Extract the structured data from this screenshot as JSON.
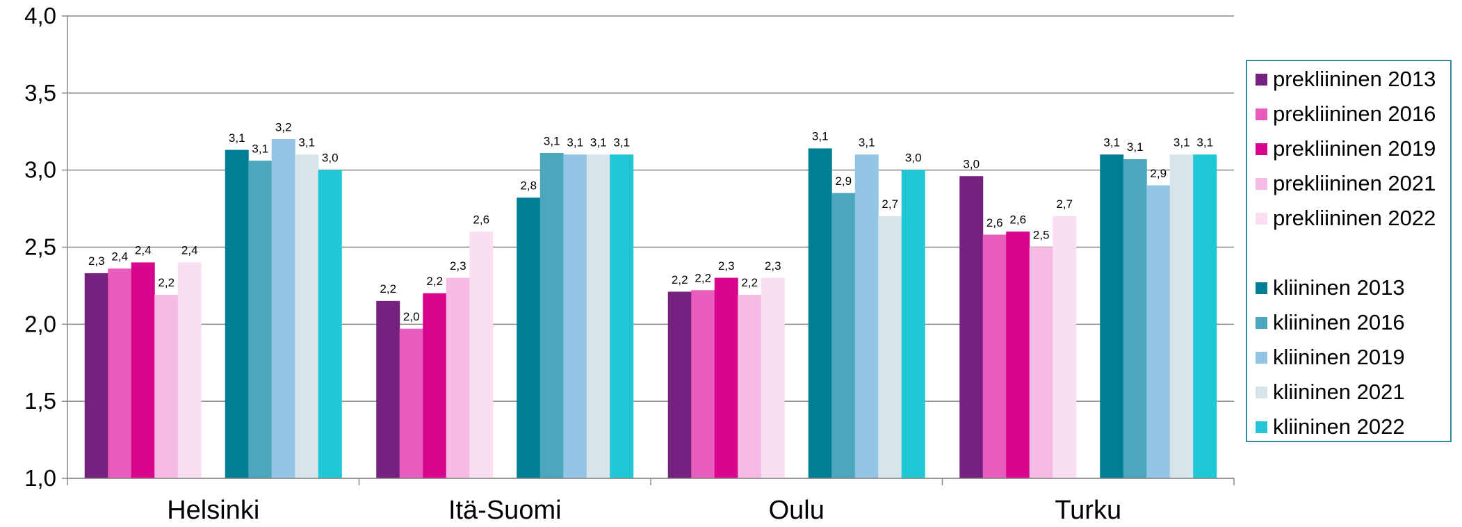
{
  "chart_data": {
    "type": "bar",
    "categories": [
      "Helsinki",
      "Itä-Suomi",
      "Oulu",
      "Turku"
    ],
    "ylim": [
      1.0,
      4.0
    ],
    "yticks": [
      "1,0",
      "1,5",
      "2,0",
      "2,5",
      "3,0",
      "3,5",
      "4,0"
    ],
    "ytick_values": [
      1.0,
      1.5,
      2.0,
      2.5,
      3.0,
      3.5,
      4.0
    ],
    "grid": true,
    "legend_position": "right",
    "groups": [
      {
        "series": [
          {
            "name": "prekliininen 2013",
            "color": "#74217F",
            "values": [
              2.33,
              2.15,
              2.21,
              2.96
            ],
            "labels": [
              "2,3",
              "2,2",
              "2,2",
              "3,0"
            ]
          },
          {
            "name": "prekliininen 2016",
            "color": "#E85DBC",
            "values": [
              2.36,
              1.97,
              2.22,
              2.58
            ],
            "labels": [
              "2,4",
              "2,0",
              "2,2",
              "2,6"
            ]
          },
          {
            "name": "prekliininen 2019",
            "color": "#D8068D",
            "values": [
              2.4,
              2.2,
              2.3,
              2.6
            ],
            "labels": [
              "2,4",
              "2,2",
              "2,3",
              "2,6"
            ]
          },
          {
            "name": "prekliininen 2021",
            "color": "#F5BBE4",
            "values": [
              2.19,
              2.3,
              2.19,
              2.5
            ],
            "labels": [
              "2,2",
              "2,3",
              "2,2",
              "2,5"
            ]
          },
          {
            "name": "prekliininen 2022",
            "color": "#FADFF2",
            "values": [
              2.4,
              2.6,
              2.3,
              2.7
            ],
            "labels": [
              "2,4",
              "2,6",
              "2,3",
              "2,7"
            ]
          }
        ]
      },
      {
        "series": [
          {
            "name": "kliininen 2013",
            "color": "#007E93",
            "values": [
              3.13,
              2.82,
              3.14,
              3.1
            ],
            "labels": [
              "3,1",
              "2,8",
              "3,1",
              "3,1"
            ]
          },
          {
            "name": "kliininen 2016",
            "color": "#4BA8BC",
            "values": [
              3.06,
              3.11,
              2.85,
              3.07
            ],
            "labels": [
              "3,1",
              "3,1",
              "2,9",
              "3,1"
            ]
          },
          {
            "name": "kliininen 2019",
            "color": "#92C5E3",
            "values": [
              3.2,
              3.1,
              3.1,
              2.9
            ],
            "labels": [
              "3,2",
              "3,1",
              "3,1",
              "2,9"
            ]
          },
          {
            "name": "kliininen 2021",
            "color": "#D7E4EA",
            "values": [
              3.1,
              3.1,
              2.7,
              3.1
            ],
            "labels": [
              "3,1",
              "3,1",
              "2,7",
              "3,1"
            ]
          },
          {
            "name": "kliininen 2022",
            "color": "#1FC8D4",
            "values": [
              3.0,
              3.1,
              3.0,
              3.1
            ],
            "labels": [
              "3,0",
              "3,1",
              "3,0",
              "3,1"
            ]
          }
        ]
      }
    ]
  },
  "colors": {
    "gridline": "#888888",
    "axis": "#888888",
    "legend_border": "#2E8C9A"
  }
}
